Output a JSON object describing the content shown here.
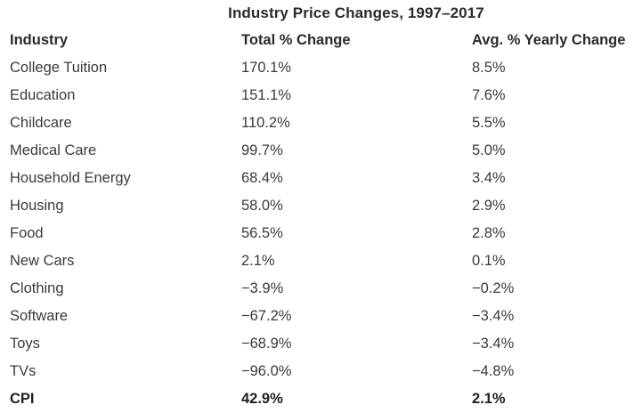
{
  "table": {
    "title": "Industry Price Changes, 1997–2017",
    "headers": [
      "Industry",
      "Total % Change",
      "Avg. % Yearly Change"
    ],
    "rows": [
      [
        "College Tuition",
        "170.1%",
        "8.5%"
      ],
      [
        "Education",
        "151.1%",
        "7.6%"
      ],
      [
        "Childcare",
        "110.2%",
        "5.5%"
      ],
      [
        "Medical Care",
        "99.7%",
        "5.0%"
      ],
      [
        "Household Energy",
        "68.4%",
        "3.4%"
      ],
      [
        "Housing",
        "58.0%",
        "2.9%"
      ],
      [
        "Food",
        "56.5%",
        "2.8%"
      ],
      [
        "New Cars",
        "2.1%",
        "0.1%"
      ],
      [
        "Clothing",
        "−3.9%",
        "−0.2%"
      ],
      [
        "Software",
        "−67.2%",
        "−3.4%"
      ],
      [
        "Toys",
        "−68.9%",
        "−3.4%"
      ],
      [
        "TVs",
        "−96.0%",
        "−4.8%"
      ]
    ],
    "total_row": [
      "CPI",
      "42.9%",
      "2.1%"
    ]
  }
}
